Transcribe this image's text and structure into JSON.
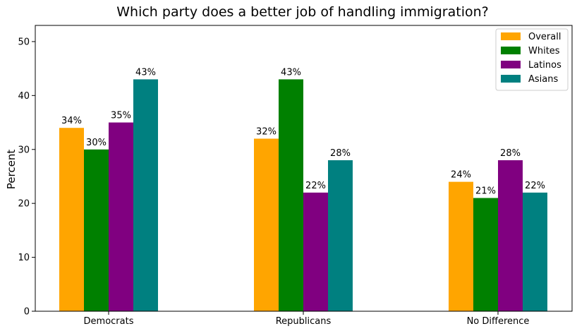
{
  "chart_data": {
    "type": "bar",
    "title": "Which party does a better job of handling immigration?",
    "xlabel": "",
    "ylabel": "Percent",
    "ylim": [
      0,
      53
    ],
    "yticks": [
      0,
      10,
      20,
      30,
      40,
      50
    ],
    "categories": [
      "Democrats",
      "Republicans",
      "No Difference"
    ],
    "series": [
      {
        "name": "Overall",
        "color": "#FFA500",
        "values": [
          34,
          32,
          24
        ],
        "labels": [
          "34%",
          "32%",
          "24%"
        ]
      },
      {
        "name": "Whites",
        "color": "#008000",
        "values": [
          30,
          43,
          21
        ],
        "labels": [
          "30%",
          "43%",
          "21%"
        ]
      },
      {
        "name": "Latinos",
        "color": "#800080",
        "values": [
          35,
          22,
          28
        ],
        "labels": [
          "35%",
          "22%",
          "28%"
        ]
      },
      {
        "name": "Asians",
        "color": "#008080",
        "values": [
          43,
          28,
          22
        ],
        "labels": [
          "43%",
          "28%",
          "22%"
        ]
      }
    ],
    "legend_position": "top-right",
    "grid": false
  }
}
